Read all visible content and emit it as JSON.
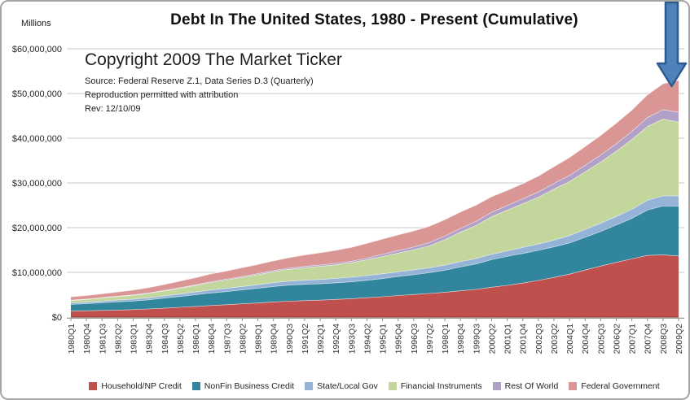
{
  "chart_data": {
    "type": "area",
    "stacked": true,
    "title": "Debt In The United States, 1980 - Present (Cumulative)",
    "y_axis_label": "Millions",
    "ymax": 60000000,
    "grid": true,
    "legend_position": "bottom",
    "y_ticks": [
      {
        "label": "$60,000,000",
        "value": 60000000
      },
      {
        "label": "$50,000,000",
        "value": 50000000
      },
      {
        "label": "$40,000,000",
        "value": 40000000
      },
      {
        "label": "$30,000,000",
        "value": 30000000
      },
      {
        "label": "$20,000,000",
        "value": 20000000
      },
      {
        "label": "$10,000,000",
        "value": 10000000
      },
      {
        "label": "$0",
        "value": 0
      }
    ],
    "categories": [
      "1980Q1",
      "1980Q4",
      "1981Q3",
      "1982Q2",
      "1983Q1",
      "1983Q4",
      "1984Q3",
      "1985Q2",
      "1986Q1",
      "1986Q4",
      "1987Q3",
      "1988Q2",
      "1989Q1",
      "1989Q4",
      "1990Q3",
      "1991Q2",
      "1992Q1",
      "1992Q4",
      "1993Q3",
      "1994Q2",
      "1995Q1",
      "1995Q4",
      "1996Q3",
      "1997Q2",
      "1998Q1",
      "1998Q4",
      "1999Q3",
      "2000Q2",
      "2001Q1",
      "2001Q4",
      "2002Q3",
      "2003Q2",
      "2004Q1",
      "2004Q4",
      "2005Q3",
      "2006Q2",
      "2007Q1",
      "2007Q4",
      "2008Q3",
      "2009Q2"
    ],
    "series": [
      {
        "name": "Household/NP Credit",
        "color": "#C0504D",
        "values": [
          1400000,
          1460000,
          1550000,
          1620000,
          1720000,
          1870000,
          2030000,
          2230000,
          2430000,
          2640000,
          2820000,
          3010000,
          3200000,
          3440000,
          3600000,
          3730000,
          3840000,
          4000000,
          4170000,
          4390000,
          4600000,
          4870000,
          5090000,
          5320000,
          5580000,
          5920000,
          6230000,
          6720000,
          7140000,
          7660000,
          8240000,
          8920000,
          9660000,
          10570000,
          11460000,
          12290000,
          13080000,
          13830000,
          13940000,
          13700000
        ]
      },
      {
        "name": "NonFin Business Credit",
        "color": "#31859C",
        "values": [
          1480000,
          1570000,
          1710000,
          1830000,
          1910000,
          2040000,
          2260000,
          2430000,
          2600000,
          2790000,
          2930000,
          3110000,
          3290000,
          3450000,
          3600000,
          3640000,
          3660000,
          3700000,
          3760000,
          3890000,
          4060000,
          4250000,
          4440000,
          4670000,
          4970000,
          5350000,
          5700000,
          6170000,
          6470000,
          6620000,
          6720000,
          6820000,
          6970000,
          7320000,
          7730000,
          8340000,
          9040000,
          10150000,
          10960000,
          11150000
        ]
      },
      {
        "name": "State/Local Gov",
        "color": "#95B3D7",
        "values": [
          330000,
          350000,
          370000,
          400000,
          430000,
          460000,
          490000,
          540000,
          620000,
          690000,
          740000,
          780000,
          810000,
          850000,
          890000,
          930000,
          960000,
          990000,
          1030000,
          1060000,
          1070000,
          1060000,
          1070000,
          1090000,
          1120000,
          1170000,
          1200000,
          1210000,
          1240000,
          1330000,
          1420000,
          1540000,
          1640000,
          1740000,
          1850000,
          1940000,
          2040000,
          2190000,
          2240000,
          2310000
        ]
      },
      {
        "name": "Financial Instruments",
        "color": "#C3D69B",
        "values": [
          560000,
          610000,
          690000,
          770000,
          850000,
          960000,
          1110000,
          1270000,
          1450000,
          1660000,
          1840000,
          2020000,
          2220000,
          2450000,
          2630000,
          2790000,
          2920000,
          3050000,
          3240000,
          3560000,
          3860000,
          4180000,
          4490000,
          4900000,
          5700000,
          6600000,
          7400000,
          8400000,
          9100000,
          9800000,
          10500000,
          11400000,
          12100000,
          12900000,
          13700000,
          14600000,
          15600000,
          16500000,
          17200000,
          16500000
        ]
      },
      {
        "name": "Rest Of World",
        "color": "#B1A0C7",
        "values": [
          70000,
          80000,
          90000,
          100000,
          110000,
          120000,
          130000,
          150000,
          170000,
          190000,
          210000,
          230000,
          250000,
          270000,
          280000,
          290000,
          300000,
          310000,
          330000,
          360000,
          500000,
          560000,
          620000,
          720000,
          800000,
          850000,
          920000,
          1000000,
          1050000,
          1100000,
          1150000,
          1250000,
          1350000,
          1450000,
          1550000,
          1650000,
          1800000,
          2000000,
          2100000,
          2200000
        ]
      },
      {
        "name": "Federal Government",
        "color": "#D99694",
        "values": [
          740000,
          780000,
          840000,
          930000,
          1070000,
          1180000,
          1310000,
          1450000,
          1580000,
          1730000,
          1830000,
          1940000,
          2040000,
          2150000,
          2330000,
          2550000,
          2760000,
          2940000,
          3100000,
          3260000,
          3400000,
          3500000,
          3600000,
          3640000,
          3660000,
          3650000,
          3630000,
          3460000,
          3380000,
          3380000,
          3540000,
          3770000,
          4000000,
          4200000,
          4390000,
          4600000,
          4780000,
          5100000,
          5800000,
          7100000
        ]
      }
    ],
    "annotations": {
      "copyright": "Copyright 2009 The Market Ticker",
      "source": "Source: Federal Reserve Z.1, Data Series D.3 (Quarterly)",
      "permission": "Reproduction permitted with attribution",
      "rev": "Rev: 12/10/09"
    },
    "arrow": {
      "shape": "block-arrow-down",
      "color": "#4F81BD",
      "border": "#2F5B8C",
      "points_at_category": "2009Q1"
    },
    "style": {
      "grid_color": "#C9C9C9",
      "axis_color": "#8E8E8E",
      "band_edge": "rgba(255,255,255,0.8)",
      "baseline_edge": "#A0413E"
    }
  }
}
